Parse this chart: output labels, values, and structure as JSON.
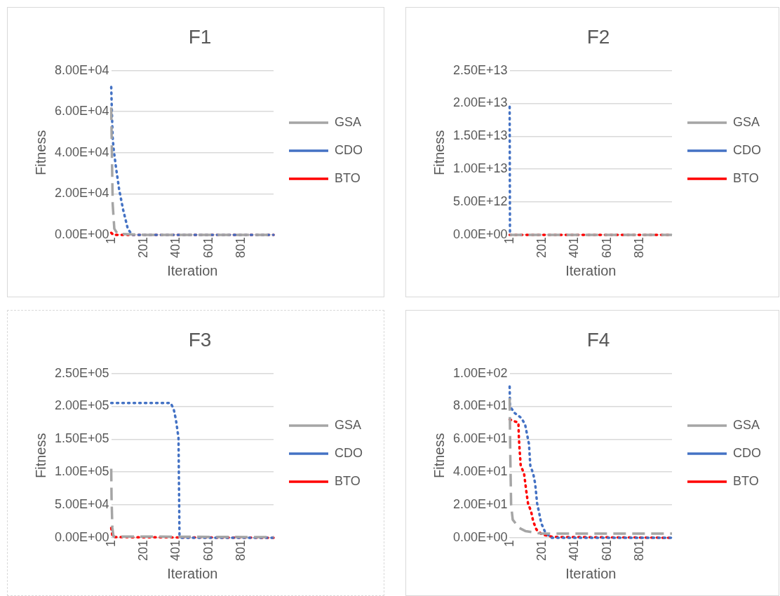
{
  "chart_data": [
    {
      "type": "line",
      "title": "F1",
      "xlabel": "Iteration",
      "ylabel": "Fitness",
      "xlim": [
        1,
        1000
      ],
      "xticks": [
        1,
        201,
        401,
        601,
        801
      ],
      "ylim": [
        0,
        80000
      ],
      "yticks": [
        {
          "value": 0,
          "label": "0.00E+00"
        },
        {
          "value": 20000,
          "label": "2.00E+04"
        },
        {
          "value": 40000,
          "label": "4.00E+04"
        },
        {
          "value": 60000,
          "label": "6.00E+04"
        },
        {
          "value": 80000,
          "label": "8.00E+04"
        }
      ],
      "grid": "y",
      "legend": "right",
      "marker": "none",
      "series": [
        {
          "name": "GSA",
          "color": "#a5a5a5",
          "line_style": "dashed",
          "x": [
            1,
            5,
            10,
            20,
            40,
            200,
            1000
          ],
          "values": [
            62000,
            40000,
            15000,
            3000,
            500,
            0,
            0
          ]
        },
        {
          "name": "CDO",
          "color": "#4472c4",
          "line_style": "dotted",
          "x": [
            1,
            5,
            10,
            17,
            30,
            50,
            74,
            103,
            129,
            300,
            500,
            700,
            1000
          ],
          "values": [
            72000,
            60000,
            47000,
            41000,
            33000,
            22000,
            12300,
            3000,
            0,
            0,
            0,
            0,
            0
          ]
        },
        {
          "name": "BTO",
          "color": "#ff0000",
          "line_style": "dotted",
          "x": [
            1,
            15,
            1000
          ],
          "values": [
            1000,
            0,
            0
          ]
        }
      ]
    },
    {
      "type": "line",
      "title": "F2",
      "xlabel": "Iteration",
      "ylabel": "Fitness",
      "xlim": [
        1,
        1000
      ],
      "xticks": [
        1,
        201,
        401,
        601,
        801
      ],
      "ylim": [
        0,
        25000000000000
      ],
      "yticks": [
        {
          "value": 0,
          "label": "0.00E+00"
        },
        {
          "value": 5000000000000,
          "label": "5.00E+12"
        },
        {
          "value": 10000000000000,
          "label": "1.00E+13"
        },
        {
          "value": 15000000000000,
          "label": "1.50E+13"
        },
        {
          "value": 20000000000000,
          "label": "2.00E+13"
        },
        {
          "value": 25000000000000,
          "label": "2.50E+13"
        }
      ],
      "grid": "y",
      "legend": "right",
      "marker": "none",
      "series": [
        {
          "name": "GSA",
          "color": "#a5a5a5",
          "line_style": "dashed",
          "x": [
            1,
            1000
          ],
          "values": [
            0,
            0
          ]
        },
        {
          "name": "CDO",
          "color": "#4472c4",
          "line_style": "dotted",
          "x": [
            1,
            3
          ],
          "values": [
            19500000000000,
            0
          ]
        },
        {
          "name": "BTO",
          "color": "#ff0000",
          "line_style": "dotted",
          "x": [
            1,
            1000
          ],
          "values": [
            0,
            0
          ]
        }
      ]
    },
    {
      "type": "line",
      "title": "F3",
      "xlabel": "Iteration",
      "ylabel": "Fitness",
      "xlim": [
        1,
        1000
      ],
      "xticks": [
        1,
        201,
        401,
        601,
        801
      ],
      "ylim": [
        0,
        250000
      ],
      "yticks": [
        {
          "value": 0,
          "label": "0.00E+00"
        },
        {
          "value": 50000,
          "label": "5.00E+04"
        },
        {
          "value": 100000,
          "label": "1.00E+05"
        },
        {
          "value": 150000,
          "label": "1.50E+05"
        },
        {
          "value": 200000,
          "label": "2.00E+05"
        },
        {
          "value": 250000,
          "label": "2.50E+05"
        }
      ],
      "grid": "y",
      "legend": "right",
      "marker": "none",
      "series": [
        {
          "name": "GSA",
          "color": "#a5a5a5",
          "line_style": "dashed",
          "x": [
            1,
            3,
            8,
            15,
            1000
          ],
          "values": [
            105000,
            60000,
            15000,
            2000,
            1000
          ]
        },
        {
          "name": "CDO",
          "color": "#4472c4",
          "line_style": "dotted",
          "x": [
            1,
            367,
            385,
            399,
            415,
            421,
            430,
            1000
          ],
          "values": [
            205000,
            205000,
            196000,
            180000,
            152000,
            5000,
            0,
            0
          ]
        },
        {
          "name": "BTO",
          "color": "#ff0000",
          "line_style": "dotted",
          "x": [
            1,
            8,
            15,
            1000
          ],
          "values": [
            15000,
            3000,
            1000,
            0
          ]
        }
      ]
    },
    {
      "type": "line",
      "title": "F4",
      "xlabel": "Iteration",
      "ylabel": "Fitness",
      "xlim": [
        1,
        1000
      ],
      "xticks": [
        1,
        201,
        401,
        601,
        801
      ],
      "ylim": [
        0,
        100
      ],
      "yticks": [
        {
          "value": 0,
          "label": "0.00E+00"
        },
        {
          "value": 20,
          "label": "2.00E+01"
        },
        {
          "value": 40,
          "label": "4.00E+01"
        },
        {
          "value": 60,
          "label": "6.00E+01"
        },
        {
          "value": 80,
          "label": "8.00E+01"
        },
        {
          "value": 100,
          "label": "1.00E+02"
        }
      ],
      "grid": "y",
      "legend": "right",
      "marker": "none",
      "series": [
        {
          "name": "GSA",
          "color": "#a5a5a5",
          "line_style": "dashed",
          "x": [
            1,
            5,
            10,
            20,
            60,
            100,
            200,
            1000
          ],
          "values": [
            85,
            50,
            20,
            11,
            6,
            4,
            2.5,
            2.5
          ]
        },
        {
          "name": "CDO",
          "color": "#4472c4",
          "line_style": "dotted",
          "x": [
            1,
            3,
            31,
            72,
            96,
            120,
            128,
            146,
            158,
            170,
            183,
            195,
            217,
            254,
            1000
          ],
          "values": [
            92,
            80,
            76,
            73,
            69,
            57,
            44,
            39,
            33,
            21,
            15,
            9,
            4,
            0,
            0
          ]
        },
        {
          "name": "BTO",
          "color": "#ff0000",
          "line_style": "dotted",
          "x": [
            1,
            55,
            57,
            60,
            69,
            90,
            104,
            114,
            133,
            146,
            166,
            200,
            268,
            1000
          ],
          "values": [
            72,
            70,
            63,
            57,
            44,
            39,
            28,
            21,
            16,
            10,
            5,
            2,
            0.5,
            0
          ]
        }
      ]
    }
  ]
}
